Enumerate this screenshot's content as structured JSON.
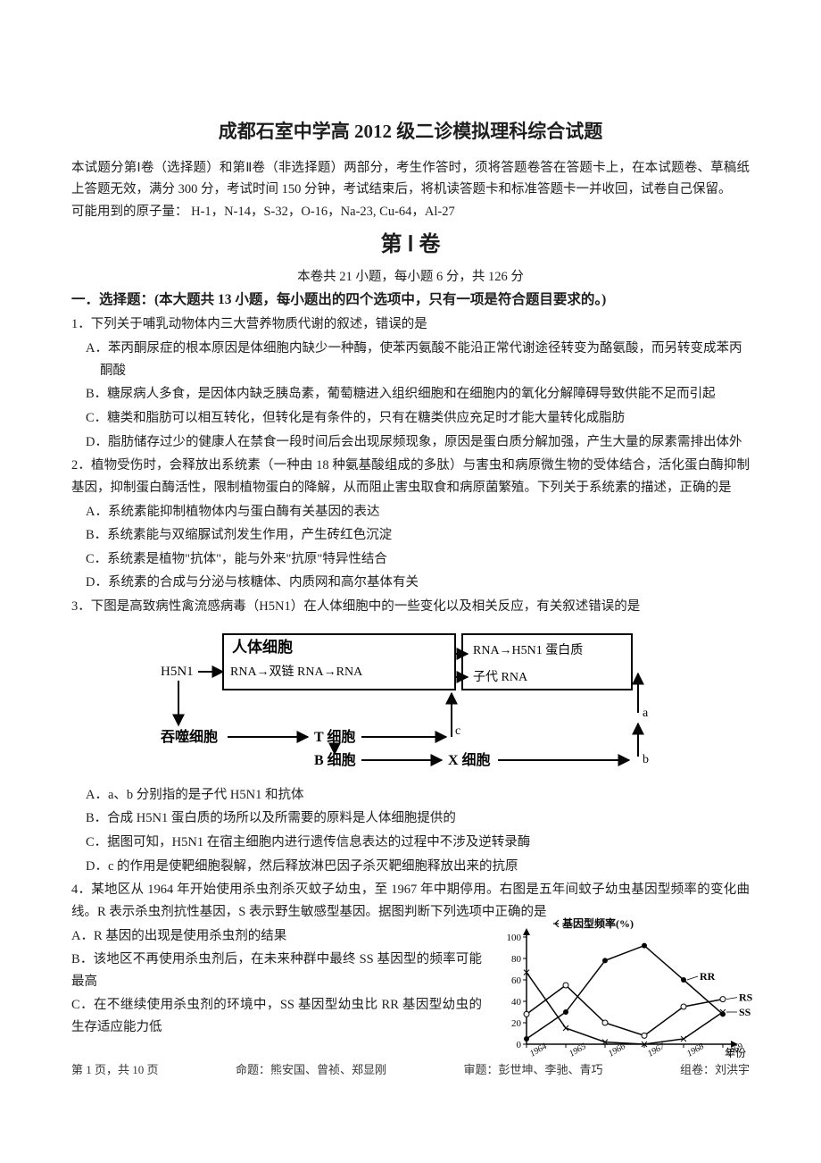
{
  "title": "成都石室中学高 2012 级二诊模拟理科综合试题",
  "instructions": "本试题分第Ⅰ卷（选择题）和第Ⅱ卷（非选择题）两部分，考生作答时，须将答题卷答在答题卡上，在本试题卷、草稿纸上答题无效，满分 300 分，考试时间 150 分钟，考试结束后，将机读答题卡和标准答题卡一并收回，试卷自己保留。",
  "atoms_line": "可能用到的原子量：  H-1，N-14，S-32，O-16，Na-23, Cu-64，Al-27",
  "volume_title": "第 Ⅰ 卷",
  "volume_sub": "本卷共 21 小题，每小题 6 分，共 126 分",
  "section_heading": "一．选择题：(本大题共 13 小题，每小题出的四个选项中，只有一项是符合题目要求的。)",
  "q1": {
    "stem": "1．下列关于哺乳动物体内三大营养物质代谢的叙述，错误的是",
    "A": "A．苯丙酮尿症的根本原因是体细胞内缺少一种酶，使苯丙氨酸不能沿正常代谢途径转变为酪氨酸，而另转变成苯丙酮酸",
    "B": "B．糖尿病人多食，是因体内缺乏胰岛素，葡萄糖进入组织细胞和在细胞内的氧化分解障碍导致供能不足而引起",
    "C": "C．糖类和脂肪可以相互转化，但转化是有条件的，只有在糖类供应充足时才能大量转化成脂肪",
    "D": "D．脂肪储存过少的健康人在禁食一段时间后会出现尿频现象，原因是蛋白质分解加强，产生大量的尿素需排出体外"
  },
  "q2": {
    "stem": "2．植物受伤时，会释放出系统素（一种由 18 种氨基酸组成的多肽）与害虫和病原微生物的受体结合，活化蛋白酶抑制基因，抑制蛋白酶活性，限制植物蛋白的降解，从而阻止害虫取食和病原菌繁殖。下列关于系统素的描述，正确的是",
    "A": "A．系统素能抑制植物体内与蛋白酶有关基因的表达",
    "B": "B．系统素能与双缩脲试剂发生作用，产生砖红色沉淀",
    "C": "C．系统素是植物\"抗体\"，能与外来\"抗原\"特异性结合",
    "D": "D．系统素的合成与分泌与核糖体、内质网和高尔基体有关"
  },
  "q3": {
    "stem": "3．下图是高致病性禽流感病毒（H5N1）在人体细胞中的一些变化以及相关反应，有关叙述错误的是",
    "A": "A．a、b 分别指的是子代 H5N1 和抗体",
    "B": "B．合成 H5N1 蛋白质的场所以及所需要的原料是人体细胞提供的",
    "C": "C．据图可知，H5N1 在宿主细胞内进行遗传信息表达的过程中不涉及逆转录酶",
    "D": "D．c 的作用是使靶细胞裂解，然后释放淋巴因子杀灭靶细胞释放出来的抗原"
  },
  "diagram3": {
    "type": "flowchart",
    "box_stroke": "#000000",
    "box_fill": "#ffffff",
    "nodes": {
      "h5n1_in": "H5N1",
      "cell_label": "人体细胞",
      "chain": "RNA→双链 RNA→RNA",
      "out1": "RNA→H5N1 蛋白质",
      "out2": "子代 RNA",
      "phago": "吞噬细胞",
      "tcell": "T 细胞",
      "bcell": "B 细胞",
      "xcell": "X 细胞",
      "a": "a",
      "b": "b",
      "c": "c"
    },
    "font_size": 15,
    "line_width": 2
  },
  "q4": {
    "stem": "4．某地区从 1964 年开始使用杀虫剂杀灭蚊子幼虫，至 1967 年中期停用。右图是五年间蚊子幼虫基因型频率的变化曲线。R 表示杀虫剂抗性基因，S 表示野生敏感型基因。据图判断下列选项中正确的是",
    "A": "A．R 基因的出现是使用杀虫剂的结果",
    "B": "B．该地区不再使用杀虫剂后，在未来种群中最终 SS 基因型的频率可能最高",
    "C": "C．在不继续使用杀虫剂的环境中，SS 基因型幼虫比 RR 基因型幼虫的生存适应能力低"
  },
  "chart4": {
    "type": "line-scatter",
    "title": "基因型频率(%)",
    "xlabel": "年份",
    "y_ticks": [
      0,
      20,
      40,
      60,
      80,
      100
    ],
    "x_ticks": [
      "1964",
      "1965",
      "1966",
      "1967",
      "1968",
      "1969"
    ],
    "series": {
      "RR": {
        "label": "RR",
        "points": [
          [
            0,
            5
          ],
          [
            1,
            30
          ],
          [
            2,
            78
          ],
          [
            3,
            92
          ],
          [
            4,
            60
          ],
          [
            5,
            28
          ]
        ],
        "marker": "filled-circle"
      },
      "RS": {
        "label": "RS",
        "points": [
          [
            0,
            28
          ],
          [
            1,
            55
          ],
          [
            2,
            20
          ],
          [
            3,
            8
          ],
          [
            4,
            35
          ],
          [
            5,
            42
          ]
        ],
        "marker": "open-circle"
      },
      "SS": {
        "label": "SS",
        "points": [
          [
            0,
            67
          ],
          [
            1,
            15
          ],
          [
            2,
            2
          ],
          [
            3,
            0
          ],
          [
            4,
            5
          ],
          [
            5,
            30
          ]
        ],
        "marker": "x"
      }
    },
    "stroke": "#000000",
    "line_width": 1.5,
    "font_size": 12,
    "background": "#ffffff"
  },
  "footer": {
    "page": "第 1 页，共 10 页",
    "author": "命题：熊安国、曾祯、郑显刚",
    "review": "审题：彭世坤、李驰、青巧",
    "compile": "组卷：刘洪宇"
  }
}
